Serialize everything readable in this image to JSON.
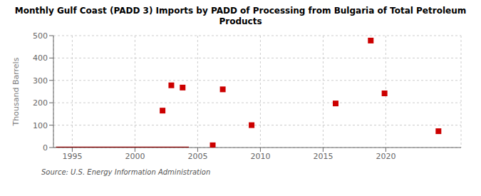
{
  "chart_data": {
    "type": "scatter",
    "title": "Monthly Gulf Coast (PADD 3) Imports by PADD of Processing from Bulgaria of Total Petroleum\nProducts",
    "ylabel": "Thousand Barrels",
    "source": "Source: U.S. Energy Information Administration",
    "xlim": [
      1993.5,
      2026
    ],
    "ylim": [
      0,
      500
    ],
    "xticks": [
      1995,
      2000,
      2005,
      2010,
      2015,
      2020
    ],
    "yticks": [
      0,
      100,
      200,
      300,
      400,
      500
    ],
    "grid": true,
    "series": [
      {
        "type": "line",
        "color": "#8b0000",
        "x": [
          1993.7,
          2004.3
        ],
        "values": [
          0,
          0
        ]
      },
      {
        "type": "scatter",
        "color": "#cc0000",
        "marker": "square",
        "x": [
          2002.2,
          2002.9,
          2003.8,
          2006.2,
          2007.0,
          2009.3,
          2016.0,
          2018.8,
          2019.9,
          2024.2
        ],
        "values": [
          165,
          278,
          268,
          10,
          260,
          100,
          197,
          478,
          242,
          73
        ]
      }
    ]
  }
}
